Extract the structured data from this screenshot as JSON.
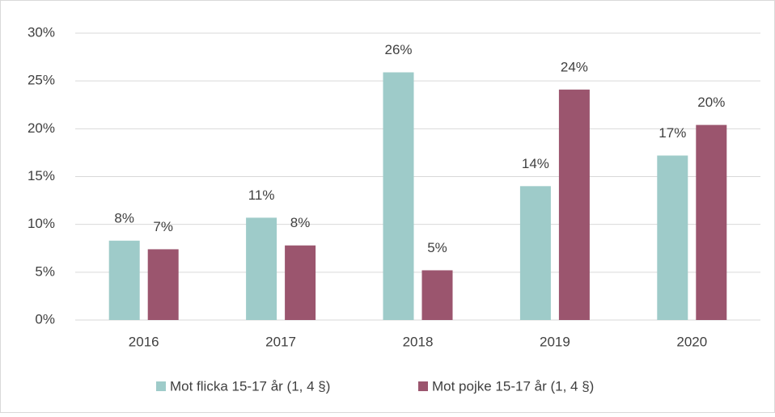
{
  "chart_data": {
    "type": "bar",
    "categories": [
      "2016",
      "2017",
      "2018",
      "2019",
      "2020"
    ],
    "series": [
      {
        "name": "Mot flicka 15-17 år (1, 4 §)",
        "color": "#9ecbc9",
        "values": [
          8.3,
          10.7,
          25.9,
          14.0,
          17.2
        ],
        "value_labels": [
          "8%",
          "11%",
          "26%",
          "14%",
          "17%"
        ]
      },
      {
        "name": "Mot pojke 15-17 år (1, 4 §)",
        "color": "#9b556e",
        "values": [
          7.4,
          7.8,
          5.2,
          24.1,
          20.4
        ],
        "value_labels": [
          "7%",
          "8%",
          "5%",
          "24%",
          "20%"
        ]
      }
    ],
    "ylim": [
      0,
      30
    ],
    "yticks": [
      {
        "value": 0,
        "label": "0%"
      },
      {
        "value": 5,
        "label": "5%"
      },
      {
        "value": 10,
        "label": "10%"
      },
      {
        "value": 15,
        "label": "15%"
      },
      {
        "value": 20,
        "label": "20%"
      },
      {
        "value": 25,
        "label": "25%"
      },
      {
        "value": 30,
        "label": "30%"
      }
    ],
    "grid": true,
    "legend": "bottom"
  }
}
